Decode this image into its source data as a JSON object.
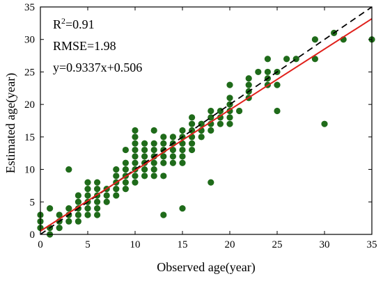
{
  "chart_data": {
    "type": "scatter",
    "xlabel": "Observed age(year)",
    "ylabel": "Estimated age(year)",
    "xlim": [
      0,
      35
    ],
    "ylim": [
      0,
      35
    ],
    "xticks": [
      0,
      5,
      10,
      15,
      20,
      25,
      30,
      35
    ],
    "yticks": [
      0,
      5,
      10,
      15,
      20,
      25,
      30,
      35
    ],
    "grid": false,
    "annotations": {
      "r2_prefix": "R",
      "r2_sup": "2",
      "r2_value": "=0.91",
      "rmse": "RMSE=1.98",
      "equation": "y=0.9337x+0.506"
    },
    "fit_line": {
      "slope": 0.9337,
      "intercept": 0.506,
      "color": "#e0201b"
    },
    "identity_line": {
      "slope": 1,
      "intercept": 0,
      "color": "#000000",
      "style": "dashed"
    },
    "point_color": "#1f6b1a",
    "points": [
      [
        0,
        1
      ],
      [
        0,
        2
      ],
      [
        0,
        3
      ],
      [
        1,
        0
      ],
      [
        1,
        1
      ],
      [
        1,
        4
      ],
      [
        2,
        1
      ],
      [
        2,
        2
      ],
      [
        2,
        3
      ],
      [
        3,
        2
      ],
      [
        3,
        3
      ],
      [
        3,
        4
      ],
      [
        3,
        10
      ],
      [
        4,
        2
      ],
      [
        4,
        3
      ],
      [
        4,
        4
      ],
      [
        4,
        5
      ],
      [
        4,
        6
      ],
      [
        5,
        3
      ],
      [
        5,
        4
      ],
      [
        5,
        5
      ],
      [
        5,
        6
      ],
      [
        5,
        7
      ],
      [
        5,
        8
      ],
      [
        6,
        3
      ],
      [
        6,
        4
      ],
      [
        6,
        5
      ],
      [
        6,
        6
      ],
      [
        6,
        7
      ],
      [
        6,
        8
      ],
      [
        7,
        5
      ],
      [
        7,
        6
      ],
      [
        7,
        7
      ],
      [
        8,
        6
      ],
      [
        8,
        7
      ],
      [
        8,
        8
      ],
      [
        8,
        9
      ],
      [
        8,
        10
      ],
      [
        9,
        7
      ],
      [
        9,
        8
      ],
      [
        9,
        9
      ],
      [
        9,
        10
      ],
      [
        9,
        11
      ],
      [
        9,
        13
      ],
      [
        10,
        8
      ],
      [
        10,
        9
      ],
      [
        10,
        10
      ],
      [
        10,
        11
      ],
      [
        10,
        12
      ],
      [
        10,
        13
      ],
      [
        10,
        14
      ],
      [
        10,
        15
      ],
      [
        10,
        16
      ],
      [
        11,
        9
      ],
      [
        11,
        10
      ],
      [
        11,
        11
      ],
      [
        11,
        12
      ],
      [
        11,
        13
      ],
      [
        11,
        14
      ],
      [
        12,
        9
      ],
      [
        12,
        10
      ],
      [
        12,
        11
      ],
      [
        12,
        12
      ],
      [
        12,
        13
      ],
      [
        12,
        14
      ],
      [
        12,
        16
      ],
      [
        13,
        3
      ],
      [
        13,
        9
      ],
      [
        13,
        11
      ],
      [
        13,
        12
      ],
      [
        13,
        13
      ],
      [
        13,
        14
      ],
      [
        13,
        15
      ],
      [
        14,
        11
      ],
      [
        14,
        12
      ],
      [
        14,
        13
      ],
      [
        14,
        14
      ],
      [
        14,
        15
      ],
      [
        15,
        4
      ],
      [
        15,
        11
      ],
      [
        15,
        12
      ],
      [
        15,
        13
      ],
      [
        15,
        14
      ],
      [
        15,
        15
      ],
      [
        15,
        16
      ],
      [
        16,
        13
      ],
      [
        16,
        14
      ],
      [
        16,
        15
      ],
      [
        16,
        16
      ],
      [
        16,
        17
      ],
      [
        16,
        18
      ],
      [
        17,
        15
      ],
      [
        17,
        16
      ],
      [
        17,
        17
      ],
      [
        18,
        8
      ],
      [
        18,
        16
      ],
      [
        18,
        17
      ],
      [
        18,
        18
      ],
      [
        18,
        19
      ],
      [
        19,
        17
      ],
      [
        19,
        18
      ],
      [
        19,
        19
      ],
      [
        20,
        17
      ],
      [
        20,
        18
      ],
      [
        20,
        19
      ],
      [
        20,
        20
      ],
      [
        20,
        21
      ],
      [
        20,
        23
      ],
      [
        21,
        19
      ],
      [
        22,
        21
      ],
      [
        22,
        22
      ],
      [
        22,
        23
      ],
      [
        22,
        24
      ],
      [
        23,
        25
      ],
      [
        24,
        23
      ],
      [
        24,
        24
      ],
      [
        24,
        25
      ],
      [
        24,
        27
      ],
      [
        25,
        19
      ],
      [
        25,
        23
      ],
      [
        25,
        25
      ],
      [
        26,
        27
      ],
      [
        27,
        27
      ],
      [
        29,
        27
      ],
      [
        29,
        30
      ],
      [
        30,
        17
      ],
      [
        31,
        31
      ],
      [
        32,
        30
      ],
      [
        35,
        30
      ]
    ]
  }
}
